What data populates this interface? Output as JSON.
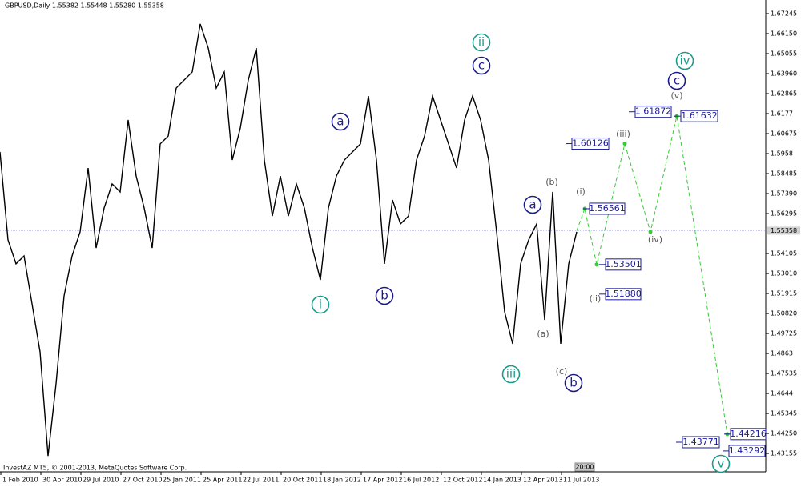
{
  "header": "GBPUSD,Daily  1.55382 1.55448 1.55280 1.55358",
  "footer": "InvestAZ MT5, © 2001-2013, MetaQuotes Software Corp.",
  "time_label": "20:00",
  "chart_data": {
    "type": "line",
    "color": "#000000",
    "x_labels": [
      "1 Feb 2010",
      "30 Apr 2010",
      "29 Jul 2010",
      "27 Oct 2010",
      "25 Jan 2011",
      "25 Apr 2011",
      "22 Jul 2011",
      "20 Oct 2011",
      "18 Jan 2012",
      "17 Apr 2012",
      "16 Jul 2012",
      "12 Oct 2012",
      "14 Jan 2013",
      "12 Apr 2013",
      "11 Jul 2013"
    ],
    "values": [
      1.5967,
      1.5485,
      1.5354,
      1.5397,
      1.5135,
      1.4872,
      1.4302,
      1.4697,
      1.5178,
      1.5397,
      1.5529,
      1.5879,
      1.5441,
      1.566,
      1.5792,
      1.5748,
      1.6142,
      1.5835,
      1.566,
      1.5441,
      1.6011,
      1.6054,
      1.6317,
      1.6361,
      1.6405,
      1.6668,
      1.6536,
      1.6317,
      1.6405,
      1.5923,
      1.6098,
      1.6361,
      1.6536,
      1.5923,
      1.5616,
      1.5835,
      1.5616,
      1.5792,
      1.566,
      1.5441,
      1.5266,
      1.566,
      1.5835,
      1.5923,
      1.5967,
      1.6011,
      1.6273,
      1.5923,
      1.5354,
      1.5704,
      1.5573,
      1.5616,
      1.5923,
      1.6054,
      1.6273,
      1.6142,
      1.6011,
      1.5879,
      1.6142,
      1.6273,
      1.6142,
      1.5923,
      1.5529,
      1.5091,
      1.4916,
      1.5354,
      1.5485,
      1.5573,
      1.5047,
      1.5748,
      1.4916,
      1.5354,
      1.5529
    ],
    "ylim": [
      1.4215,
      1.6799
    ],
    "yticks": [
      1.67245,
      {
        "value": 1.6615,
        "label": "1.66150"
      },
      1.65055,
      {
        "value": 1.6396,
        "label": "1.63960"
      },
      1.62865,
      1.6177,
      1.60675,
      1.5958,
      1.58485,
      {
        "value": 1.5739,
        "label": "1.57390"
      },
      1.56295,
      1.54105,
      {
        "value": 1.5301,
        "label": "1.53010"
      },
      1.51915,
      {
        "value": 1.5082,
        "label": "1.50820"
      },
      1.49725,
      1.4863,
      1.47535,
      1.4644,
      1.45345,
      {
        "value": 1.4425,
        "label": "1.44250"
      },
      1.43155
    ],
    "current_price": 1.55358,
    "forecast": {
      "color": "#33cc33",
      "values": [
        1.55358,
        1.56561,
        1.53501,
        1.60126,
        1.5529,
        1.61632,
        1.44216
      ]
    },
    "price_labels": [
      1.56561,
      1.53501,
      {
        "value": 1.5188,
        "label": "1.51880"
      },
      1.60126,
      1.61872,
      1.61632,
      1.44216,
      1.43771,
      1.43292
    ],
    "wave_labels": [
      "ii",
      "c",
      "a",
      "i",
      "b",
      "iii",
      "a",
      "b",
      "iv",
      "c",
      "v"
    ],
    "sub_wave_labels": [
      "(b)",
      "(i)",
      "(a)",
      "(c)",
      "(ii)",
      "(iii)",
      "(iv)",
      "(v)"
    ]
  }
}
